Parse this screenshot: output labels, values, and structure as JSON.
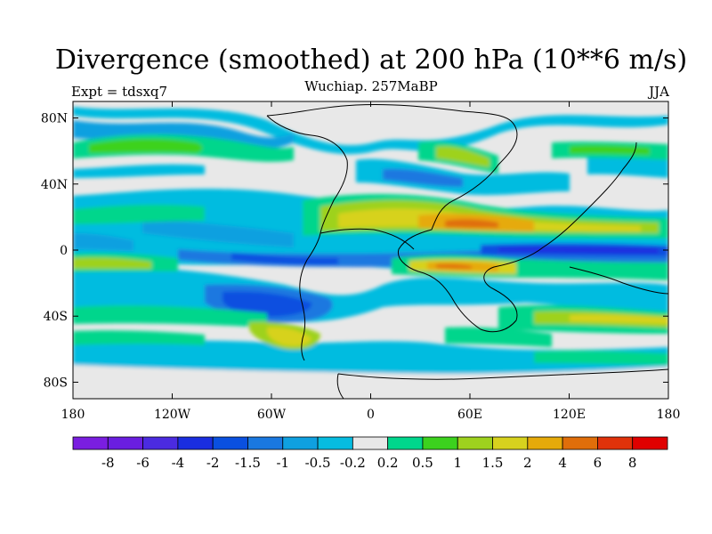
{
  "title": "Divergence (smoothed) at 200 hPa (10**6 m/s)",
  "subtitle": "Wuchiap. 257MaBP",
  "left_label": "Expt = tdsxq7",
  "right_label": "JJA",
  "axes": {
    "y_ticks": [
      {
        "value": 80,
        "label": "80N"
      },
      {
        "value": 40,
        "label": "40N"
      },
      {
        "value": 0,
        "label": "0"
      },
      {
        "value": -40,
        "label": "40S"
      },
      {
        "value": -80,
        "label": "80S"
      }
    ],
    "x_ticks": [
      {
        "value": -180,
        "label": "180"
      },
      {
        "value": -120,
        "label": "120W"
      },
      {
        "value": -60,
        "label": "60W"
      },
      {
        "value": 0,
        "label": "0"
      },
      {
        "value": 60,
        "label": "60E"
      },
      {
        "value": 120,
        "label": "120E"
      },
      {
        "value": 180,
        "label": "180"
      }
    ]
  },
  "colorbar": {
    "colors": [
      "#7a1ee0",
      "#6a1ee0",
      "#4b2be0",
      "#1a2ee0",
      "#0a50e0",
      "#1a78e0",
      "#0fa0e0",
      "#06bce0",
      "#e8e8e8",
      "#00d68c",
      "#3cd21e",
      "#9ed21e",
      "#d7d21e",
      "#e6aa0a",
      "#e06e0a",
      "#e0320a",
      "#e00000"
    ],
    "labels": [
      "-8",
      "-6",
      "-4",
      "-2",
      "-1.5",
      "-1",
      "-0.5",
      "-0.2",
      "0.2",
      "0.5",
      "1",
      "1.5",
      "2",
      "4",
      "6",
      "8"
    ]
  }
}
